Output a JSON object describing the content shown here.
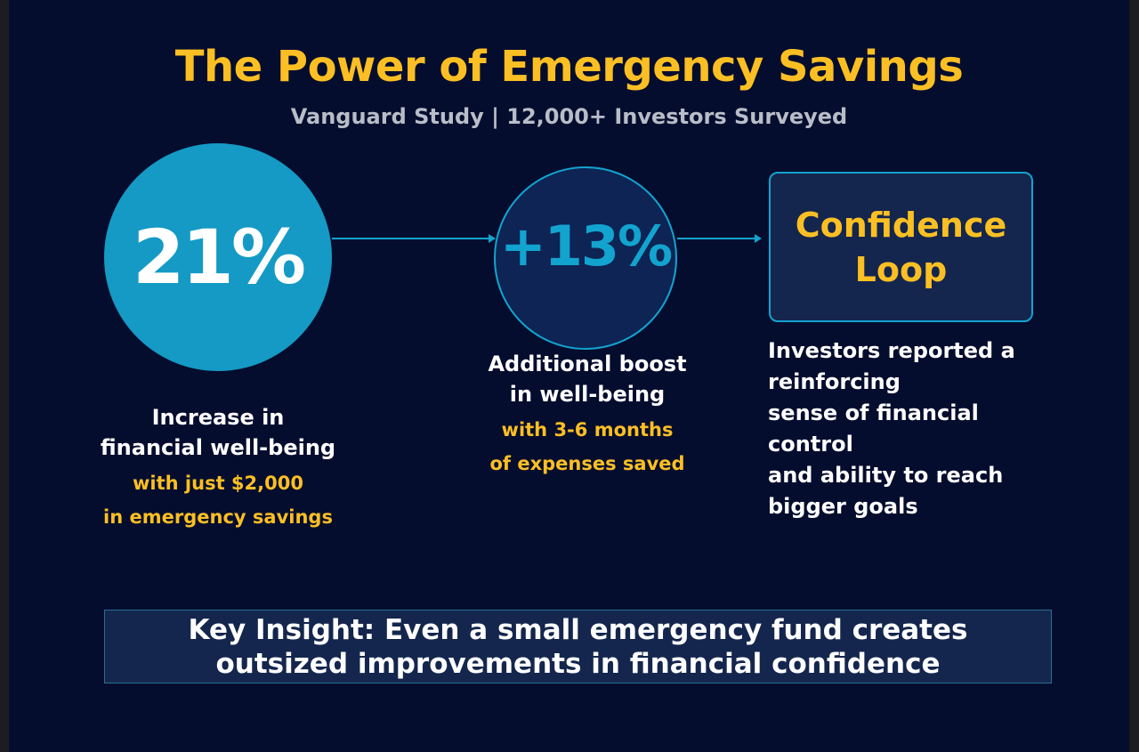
{
  "title": "The Power of Emergency Savings",
  "subtitle": "Vanguard Study | 12,000+ Investors Surveyed",
  "colors": {
    "background": "#050d2e",
    "accent_yellow": "#fbbf24",
    "accent_blue": "#149ac5",
    "panel": "#14264d"
  },
  "stats": [
    {
      "value": "21%",
      "caption_lines": [
        "Increase in",
        "financial well-being"
      ],
      "accent_lines": [
        "with just $2,000",
        "in emergency savings"
      ]
    },
    {
      "value": "+13%",
      "caption_lines": [
        "Additional boost",
        "in well-being"
      ],
      "accent_lines": [
        "with 3-6 months",
        "of expenses saved"
      ]
    },
    {
      "value_lines": [
        "Confidence",
        "Loop"
      ],
      "caption_lines": [
        "Investors reported a",
        "reinforcing",
        "sense of financial",
        "control",
        "and ability to reach",
        "bigger goals"
      ]
    }
  ],
  "insight": {
    "lines": [
      "Key Insight: Even a small emergency fund creates",
      "outsized improvements in financial confidence"
    ]
  }
}
